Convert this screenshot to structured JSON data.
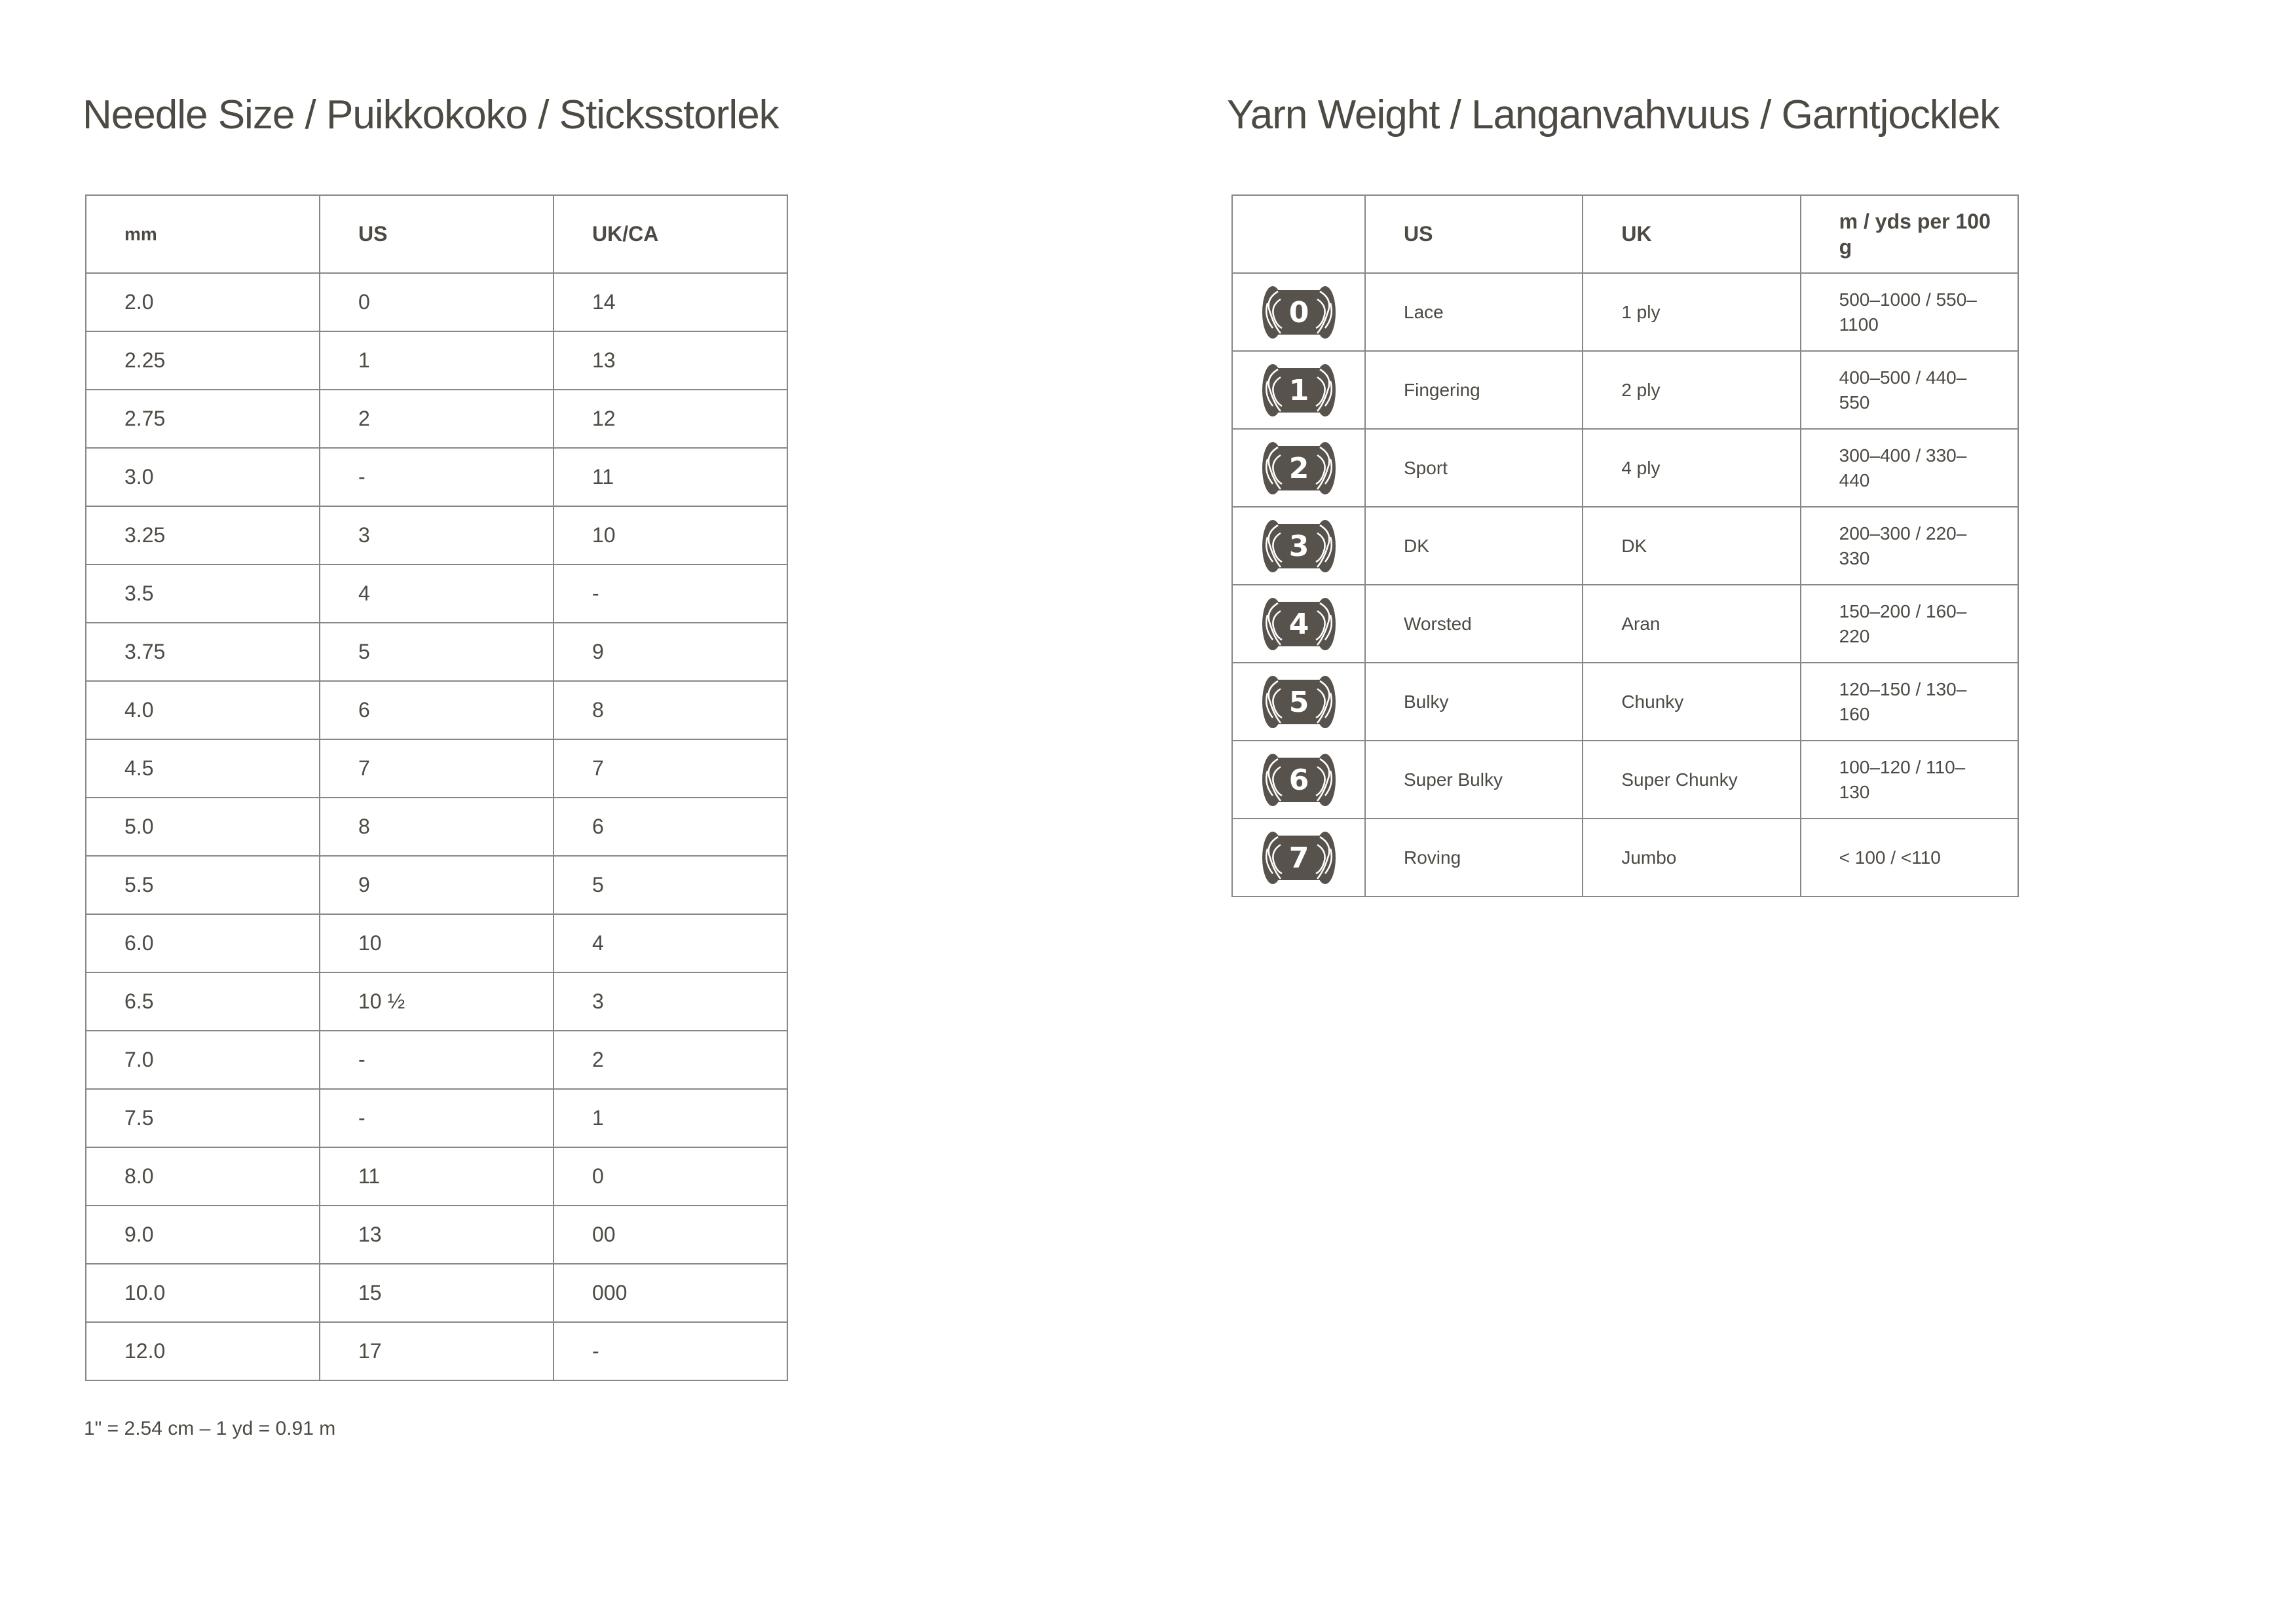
{
  "needle": {
    "title": "Needle Size / Puikkokoko / Sticksstorlek",
    "headers": [
      "mm",
      "US",
      "UK/CA"
    ],
    "rows": [
      [
        "2.0",
        "0",
        "14"
      ],
      [
        "2.25",
        "1",
        "13"
      ],
      [
        "2.75",
        "2",
        "12"
      ],
      [
        "3.0",
        "-",
        "11"
      ],
      [
        "3.25",
        "3",
        "10"
      ],
      [
        "3.5",
        "4",
        "-"
      ],
      [
        "3.75",
        "5",
        "9"
      ],
      [
        "4.0",
        "6",
        "8"
      ],
      [
        "4.5",
        "7",
        "7"
      ],
      [
        "5.0",
        "8",
        "6"
      ],
      [
        "5.5",
        "9",
        "5"
      ],
      [
        "6.0",
        "10",
        "4"
      ],
      [
        "6.5",
        "10 ½",
        "3"
      ],
      [
        "7.0",
        "-",
        "2"
      ],
      [
        "7.5",
        "-",
        "1"
      ],
      [
        "8.0",
        "11",
        "0"
      ],
      [
        "9.0",
        "13",
        "00"
      ],
      [
        "10.0",
        "15",
        "000"
      ],
      [
        "12.0",
        "17",
        "-"
      ]
    ],
    "footnote": "1\" = 2.54 cm  –  1 yd = 0.91 m"
  },
  "yarn": {
    "title": "Yarn Weight / Langanvahvuus / Garntjocklek",
    "headers": [
      "",
      "US",
      "UK",
      "m / yds per 100 g"
    ],
    "rows": [
      {
        "icon": "yarn-skein-icon",
        "number": "0",
        "us": "Lace",
        "uk": "1 ply",
        "length": "500–1000 / 550–1100"
      },
      {
        "icon": "yarn-skein-icon",
        "number": "1",
        "us": "Fingering",
        "uk": "2 ply",
        "length": "400–500 / 440–550"
      },
      {
        "icon": "yarn-skein-icon",
        "number": "2",
        "us": "Sport",
        "uk": "4 ply",
        "length": "300–400 / 330–440"
      },
      {
        "icon": "yarn-skein-icon",
        "number": "3",
        "us": "DK",
        "uk": "DK",
        "length": "200–300 / 220–330"
      },
      {
        "icon": "yarn-skein-icon",
        "number": "4",
        "us": "Worsted",
        "uk": "Aran",
        "length": "150–200 / 160–220"
      },
      {
        "icon": "yarn-skein-icon",
        "number": "5",
        "us": "Bulky",
        "uk": "Chunky",
        "length": "120–150 / 130–160"
      },
      {
        "icon": "yarn-skein-icon",
        "number": "6",
        "us": "Super Bulky",
        "uk": "Super Chunky",
        "length": "100–120 / 110–130"
      },
      {
        "icon": "yarn-skein-icon",
        "number": "7",
        "us": "Roving",
        "uk": "Jumbo",
        "length": "< 100 / <110"
      }
    ]
  },
  "colors": {
    "text": "#4d4943",
    "icon": "#57524b",
    "border": "#8a8783"
  }
}
